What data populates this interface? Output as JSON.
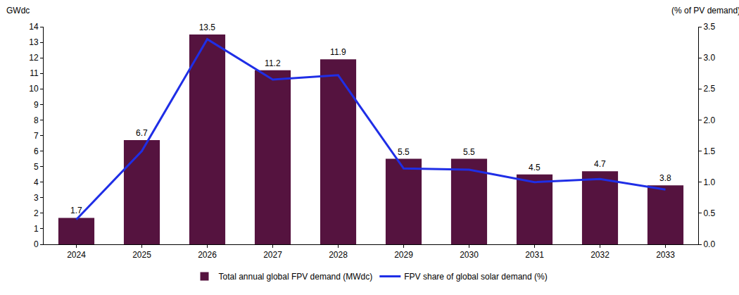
{
  "chart_data": {
    "type": "bar",
    "categories": [
      "2024",
      "2025",
      "2026",
      "2027",
      "2028",
      "2029",
      "2030",
      "2031",
      "2032",
      "2033"
    ],
    "ylabel": "GWdc",
    "y2label": "(% of PV demand)",
    "ylim": [
      0,
      14
    ],
    "yticks": [
      0,
      1,
      2,
      3,
      4,
      5,
      6,
      7,
      8,
      9,
      10,
      11,
      12,
      13,
      14
    ],
    "y2lim": [
      0,
      3.5
    ],
    "y2ticks": [
      {
        "value": 0,
        "label": "0.0"
      },
      0.5,
      {
        "value": 1,
        "label": "1.0"
      },
      1.5,
      {
        "value": 2,
        "label": "2.0"
      },
      2.5,
      {
        "value": 3,
        "label": "3.0"
      },
      3.5
    ],
    "grid": false,
    "legend": "bottom",
    "series": [
      {
        "name": "Total annual global FPV demand (MWdc)",
        "type": "bar",
        "color": "#55133f",
        "data_labels": true,
        "values": [
          1.7,
          6.7,
          13.5,
          11.2,
          11.9,
          5.5,
          5.5,
          4.5,
          4.7,
          3.8
        ]
      },
      {
        "name": "FPV share of global solar demand (%)",
        "type": "line",
        "color": "#1f2ee6",
        "axis": "y2",
        "line_style": "solid",
        "values": [
          0.4,
          1.5,
          3.3,
          2.65,
          2.72,
          1.22,
          1.2,
          1.0,
          1.05,
          0.88
        ]
      }
    ]
  }
}
